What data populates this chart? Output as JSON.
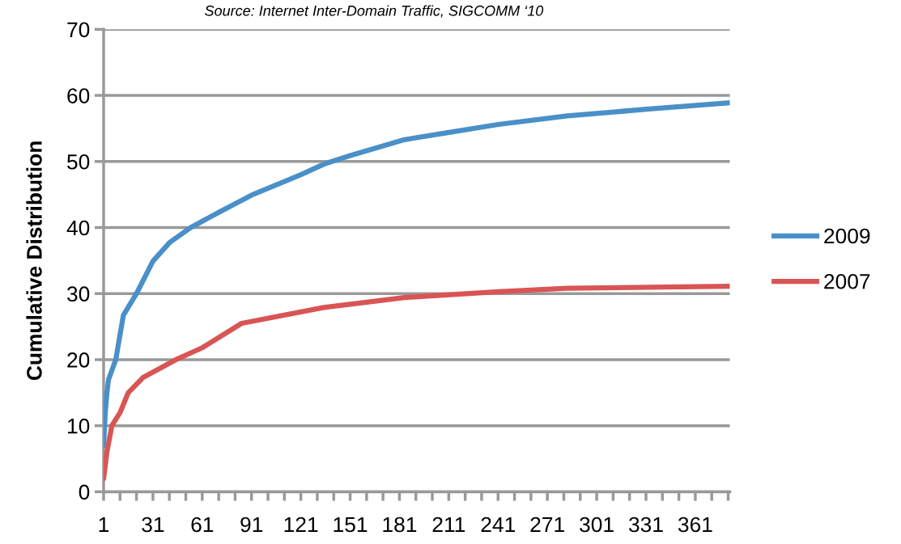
{
  "chart_data": {
    "type": "line",
    "ylabel": "Cumulative Distribution",
    "annotations": [
      "Source: Internet Inter-Domain Traffic, SIGCOMM ‘10"
    ],
    "series": [
      {
        "name": "2009",
        "color": "#4a90c8",
        "x": [
          1,
          2,
          3,
          4,
          8.4,
          13,
          21,
          31,
          41,
          54,
          71,
          91,
          121,
          135,
          151,
          184,
          211,
          241,
          283,
          331,
          382
        ],
        "values": [
          7,
          12,
          15,
          17,
          20,
          26.7,
          30,
          34.9,
          37.7,
          40,
          42.3,
          44.9,
          48,
          49.6,
          50.9,
          53.3,
          54.4,
          55.6,
          56.9,
          57.9,
          58.9
        ]
      },
      {
        "name": "2007",
        "color": "#d95555",
        "x": [
          1,
          2,
          3,
          6,
          11,
          16,
          25,
          45,
          61,
          85,
          135,
          184,
          241,
          283,
          382
        ],
        "values": [
          2,
          4,
          6,
          10,
          12,
          15,
          17.3,
          20,
          21.8,
          25.5,
          27.9,
          29.4,
          30.3,
          30.8,
          31.1
        ]
      }
    ],
    "xlim": [
      1,
      382
    ],
    "xticks": [
      1,
      {
        "value": 11,
        "label": null
      },
      {
        "value": 21,
        "label": null
      },
      31,
      {
        "value": 41,
        "label": null
      },
      {
        "value": 51,
        "label": null
      },
      61,
      {
        "value": 71,
        "label": null
      },
      {
        "value": 81,
        "label": null
      },
      91,
      {
        "value": 101,
        "label": null
      },
      {
        "value": 111,
        "label": null
      },
      121,
      {
        "value": 131,
        "label": null
      },
      {
        "value": 141,
        "label": null
      },
      151,
      {
        "value": 161,
        "label": null
      },
      {
        "value": 171,
        "label": null
      },
      181,
      {
        "value": 191,
        "label": null
      },
      {
        "value": 201,
        "label": null
      },
      211,
      {
        "value": 221,
        "label": null
      },
      {
        "value": 231,
        "label": null
      },
      241,
      {
        "value": 251,
        "label": null
      },
      {
        "value": 261,
        "label": null
      },
      271,
      {
        "value": 281,
        "label": null
      },
      {
        "value": 291,
        "label": null
      },
      301,
      {
        "value": 311,
        "label": null
      },
      {
        "value": 321,
        "label": null
      },
      331,
      {
        "value": 341,
        "label": null
      },
      {
        "value": 351,
        "label": null
      },
      361,
      {
        "value": 371,
        "label": null
      },
      {
        "value": 381,
        "label": null
      }
    ],
    "ylim": [
      0,
      70
    ],
    "yticks": [
      0,
      10,
      20,
      30,
      40,
      50,
      60,
      70
    ],
    "grid": "y",
    "legend": "right",
    "marker": "none",
    "line_style": "solid"
  }
}
